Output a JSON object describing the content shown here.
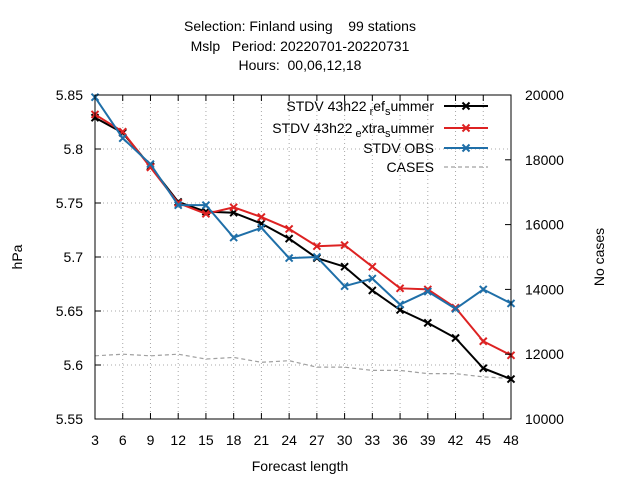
{
  "chart_data": {
    "type": "line",
    "title_lines": [
      "Selection: Finland using    99 stations",
      "Mslp   Period: 20220701-20220731",
      "Hours:  00,06,12,18"
    ],
    "xlabel": "Forecast length",
    "ylabel": "hPa",
    "y2label": "No cases",
    "x": [
      3,
      6,
      9,
      12,
      15,
      18,
      21,
      24,
      27,
      30,
      33,
      36,
      39,
      42,
      45,
      48
    ],
    "xlim": [
      3,
      48
    ],
    "ylim": [
      5.55,
      5.85
    ],
    "y2lim": [
      10000,
      20000
    ],
    "y_ticks": [
      "5.55",
      "5.6",
      "5.65",
      "5.7",
      "5.75",
      "5.8",
      "5.85"
    ],
    "y2_ticks": [
      "10000",
      "12000",
      "14000",
      "16000",
      "18000",
      "20000"
    ],
    "x_ticks": [
      "3",
      "6",
      "9",
      "12",
      "15",
      "18",
      "21",
      "24",
      "27",
      "30",
      "33",
      "36",
      "39",
      "42",
      "45",
      "48"
    ],
    "grid": true,
    "legend_position": "top-right",
    "series": [
      {
        "name": "STDV 43h22_ref_summer",
        "legend_main": "STDV 43h22",
        "legend_parts": [
          {
            "text": "r",
            "shift": "sub"
          },
          {
            "text": "ef",
            "shift": "none"
          },
          {
            "text": "s",
            "shift": "sub"
          },
          {
            "text": "ummer",
            "shift": "none"
          }
        ],
        "color": "#000000",
        "axis": "y",
        "values": [
          5.829,
          5.815,
          5.784,
          5.751,
          5.742,
          5.741,
          5.731,
          5.717,
          5.699,
          5.691,
          5.669,
          5.651,
          5.639,
          5.625,
          5.597,
          5.587
        ]
      },
      {
        "name": "STDV 43h22_extra_summer",
        "legend_main": "STDV 43h22",
        "legend_parts": [
          {
            "text": "e",
            "shift": "sub"
          },
          {
            "text": "xtra",
            "shift": "none"
          },
          {
            "text": "s",
            "shift": "sub"
          },
          {
            "text": "ummer",
            "shift": "none"
          }
        ],
        "color": "#dd2222",
        "axis": "y",
        "values": [
          5.832,
          5.816,
          5.783,
          5.75,
          5.74,
          5.746,
          5.737,
          5.726,
          5.71,
          5.711,
          5.691,
          5.671,
          5.67,
          5.653,
          5.622,
          5.609
        ]
      },
      {
        "name": "STDV OBS",
        "legend_main": "STDV OBS",
        "legend_parts": [],
        "color": "#1f6fa8",
        "axis": "y",
        "values": [
          5.848,
          5.81,
          5.786,
          5.748,
          5.748,
          5.718,
          5.727,
          5.699,
          5.7,
          5.673,
          5.68,
          5.656,
          5.668,
          5.652,
          5.67,
          5.657
        ]
      },
      {
        "name": "CASES",
        "legend_main": "CASES",
        "legend_parts": [],
        "color": "#a0a0a0",
        "axis": "y2",
        "dashed": true,
        "values": [
          11950,
          12000,
          11950,
          12000,
          11850,
          11900,
          11750,
          11800,
          11600,
          11600,
          11500,
          11500,
          11400,
          11400,
          11300,
          11250
        ]
      }
    ]
  }
}
